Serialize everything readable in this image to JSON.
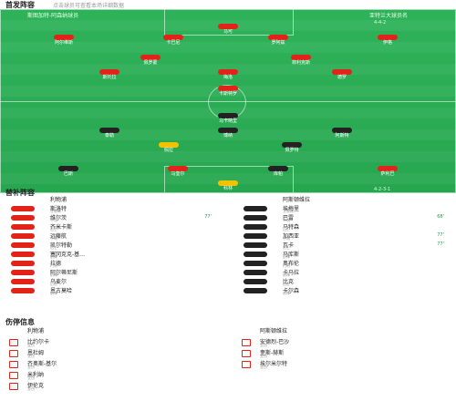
{
  "header": {
    "title": "首发阵容",
    "subtitle": "点击球员可查看本场详细数据"
  },
  "pitch": {
    "home_team": "斯图加特-阿森纳球员",
    "away_team": "亚特兰大球员名",
    "home_formation": "4-4-2",
    "away_formation": "4-2-3-1"
  },
  "home_players": [
    {
      "name": "马可",
      "color": "red"
    },
    {
      "name": "阿尔维斯",
      "color": "red"
    },
    {
      "name": "卡巴尼",
      "color": "red"
    },
    {
      "name": "罗阿兹",
      "color": "red"
    },
    {
      "name": "伊格",
      "color": "red"
    },
    {
      "name": "佩罗蒙",
      "color": "red"
    },
    {
      "name": "菲利克斯",
      "color": "red"
    },
    {
      "name": "斯托拉",
      "color": "red"
    },
    {
      "name": "梅洛",
      "color": "red"
    },
    {
      "name": "德罗",
      "color": "red"
    },
    {
      "name": "卡斯特罗",
      "color": "red"
    }
  ],
  "away_players": [
    {
      "name": "乌卡纳里",
      "color": "black"
    },
    {
      "name": "泰勒",
      "color": "black"
    },
    {
      "name": "博纳",
      "color": "black"
    },
    {
      "name": "阿斯特",
      "color": "black"
    },
    {
      "name": "佩拉",
      "color": "yellow"
    },
    {
      "name": "佩罗特",
      "color": "black"
    },
    {
      "name": "巴斯",
      "color": "black"
    },
    {
      "name": "马奎尔",
      "color": "red"
    },
    {
      "name": "库帕",
      "color": "black"
    },
    {
      "name": "萨利巴",
      "color": "red"
    },
    {
      "name": "科林",
      "color": "yellow"
    }
  ],
  "substitutes": {
    "title": "替补阵容",
    "home": [
      {
        "name": "利物浦",
        "sub": "",
        "time": ""
      },
      {
        "name": "斯洛特",
        "sub": "主教练",
        "time": ""
      },
      {
        "name": "维尔茨",
        "sub": "中场",
        "time": "77'"
      },
      {
        "name": "齐米卡斯",
        "sub": "后卫",
        "time": ""
      },
      {
        "name": "远藤航",
        "sub": "中场",
        "time": ""
      },
      {
        "name": "凯尔特勒",
        "sub": "后卫",
        "time": ""
      },
      {
        "name": "塞冈克克-基…",
        "sub": "前锋",
        "time": ""
      },
      {
        "name": "拉德",
        "sub": "门将",
        "time": ""
      },
      {
        "name": "阿尔蒂尼斯",
        "sub": "前锋",
        "time": ""
      },
      {
        "name": "乌麦尔",
        "sub": "后卫",
        "time": ""
      },
      {
        "name": "恩古莫哈",
        "sub": "前锋",
        "time": ""
      }
    ],
    "away": [
      {
        "name": "阿斯顿维拉",
        "sub": "",
        "time": ""
      },
      {
        "name": "埃梅里",
        "sub": "主教练",
        "time": ""
      },
      {
        "name": "巴雷",
        "sub": "中场",
        "time": "68'"
      },
      {
        "name": "马特森",
        "sub": "后卫",
        "time": ""
      },
      {
        "name": "加西亚",
        "sub": "中场",
        "time": "77'"
      },
      {
        "name": "瓦卡",
        "sub": "后卫",
        "time": "77'"
      },
      {
        "name": "马库斯",
        "sub": "前锋",
        "time": ""
      },
      {
        "name": "奥布伦",
        "sub": "门将",
        "time": ""
      },
      {
        "name": "卡马拉",
        "sub": "前锋",
        "time": ""
      },
      {
        "name": "比克",
        "sub": "后卫",
        "time": ""
      },
      {
        "name": "卡尔森",
        "sub": "前锋",
        "time": ""
      }
    ]
  },
  "injuries": {
    "title": "伤停信息",
    "home": [
      {
        "name": "利物浦",
        "sub": ""
      },
      {
        "name": "比约尔卡",
        "sub": "受伤"
      },
      {
        "name": "恩杜姆",
        "sub": "受伤"
      },
      {
        "name": "齐奥斯-基尔",
        "sub": "受伤"
      },
      {
        "name": "米利纳",
        "sub": "受伤"
      },
      {
        "name": "伊伦克",
        "sub": "受伤"
      }
    ],
    "away": [
      {
        "name": "阿斯顿维拉",
        "sub": ""
      },
      {
        "name": "安德烈-巴沙",
        "sub": "受伤"
      },
      {
        "name": "奎斯-赫斯",
        "sub": "受伤"
      },
      {
        "name": "埃尔米尔特",
        "sub": "受伤"
      }
    ]
  },
  "colors": {
    "pitch": "#2eb259",
    "home": "#e2231a",
    "away": "#222222",
    "accent": "#2a9d4a"
  }
}
